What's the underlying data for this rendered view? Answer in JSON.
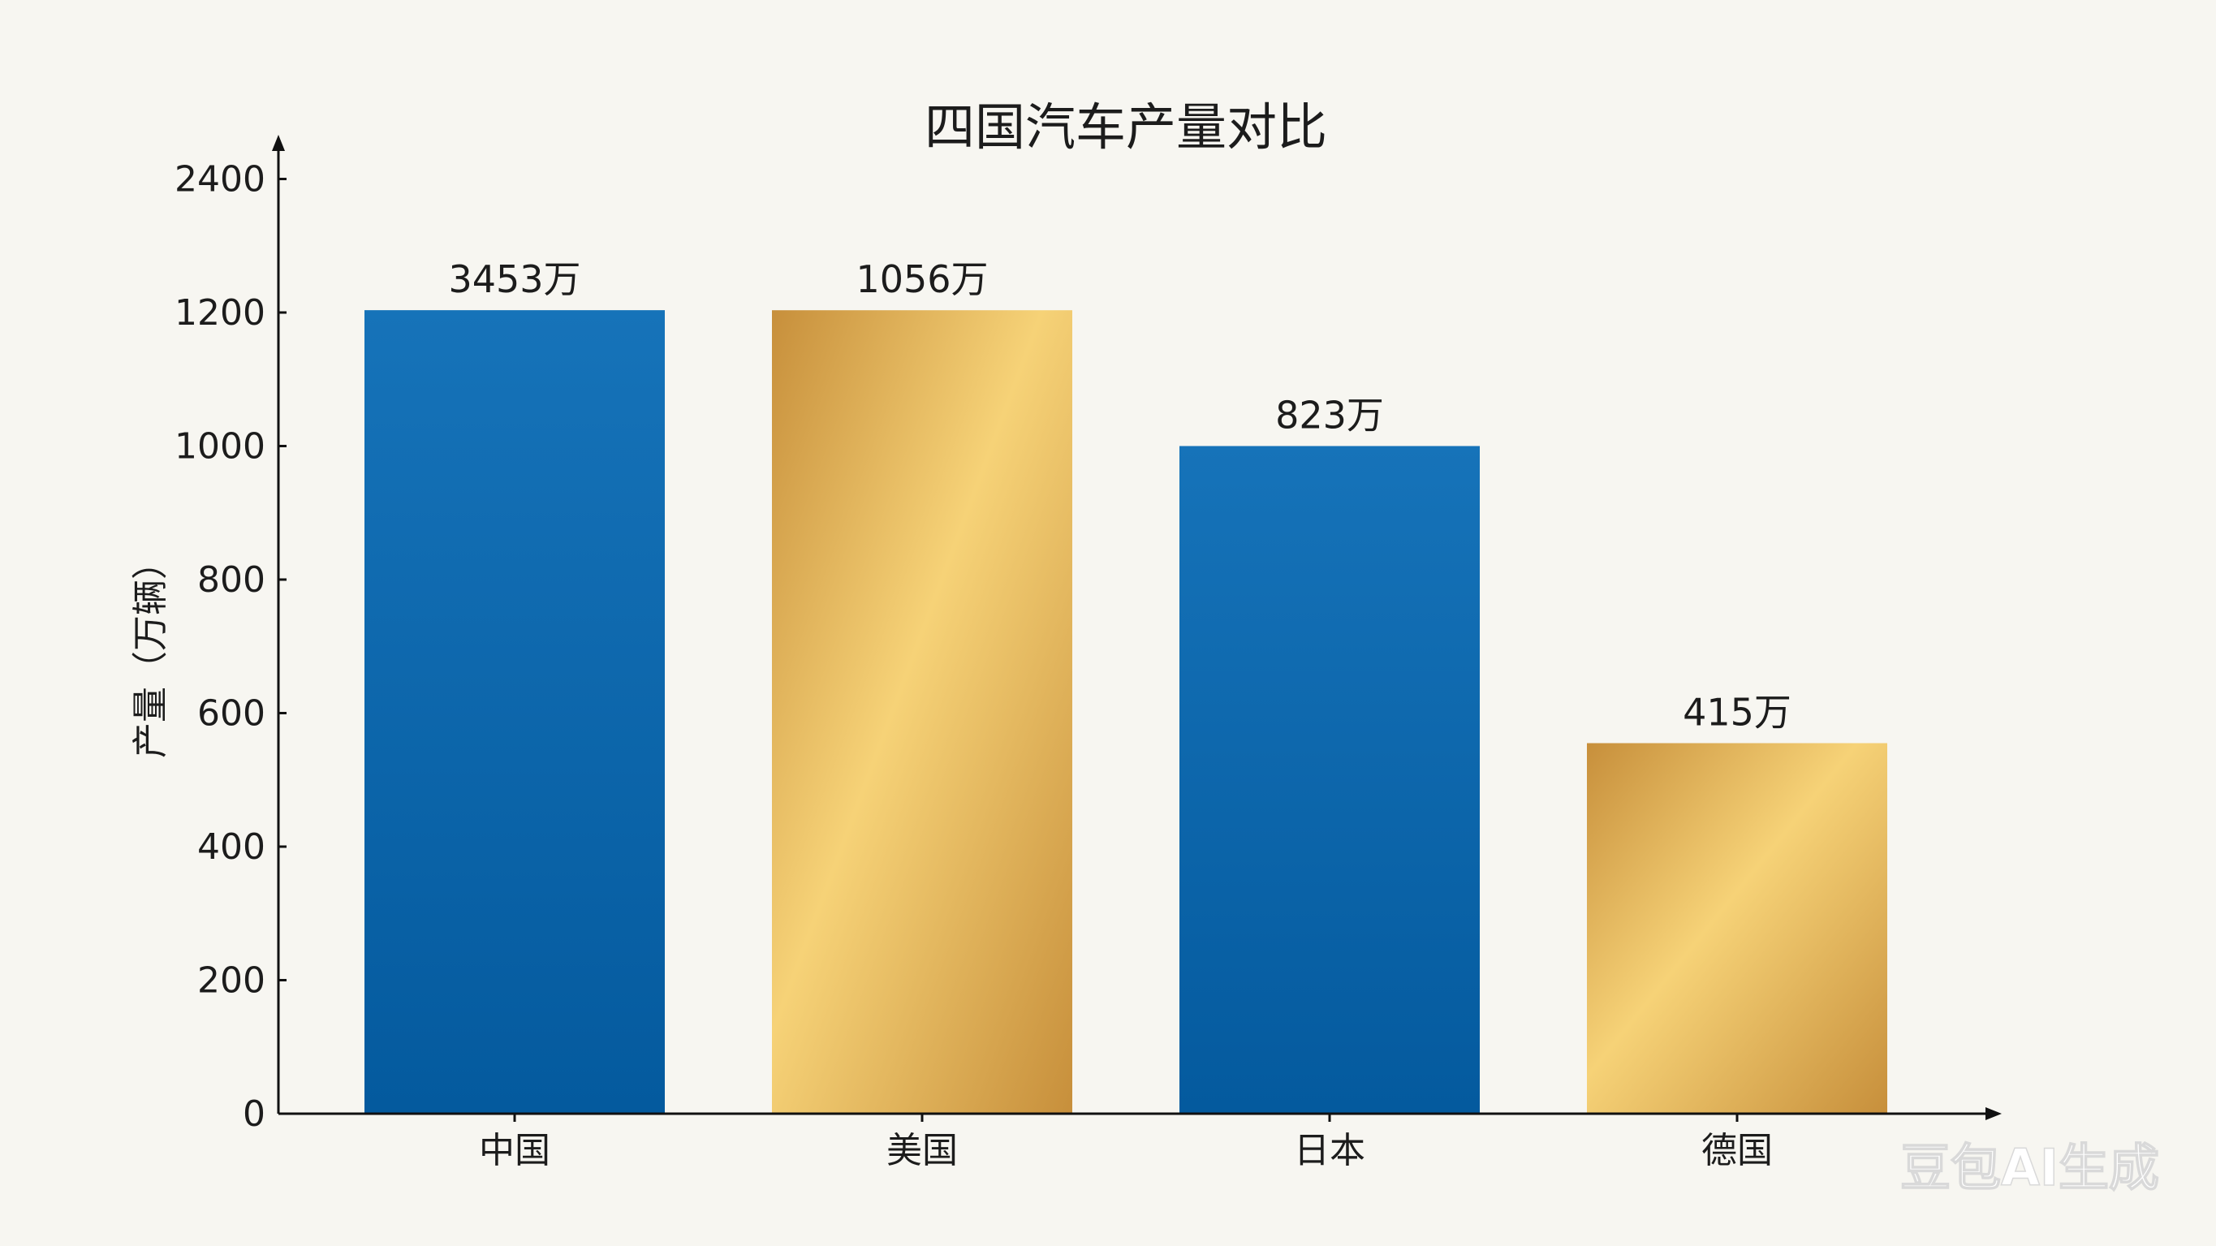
{
  "chart_data": {
    "type": "bar",
    "title": "四国汽车产量对比",
    "ylabel": "产量（万辆）",
    "xlabel": "",
    "y_ticks": [
      "0",
      "200",
      "400",
      "600",
      "800",
      "1000",
      "1200",
      "2400"
    ],
    "categories": [
      "中国",
      "美国",
      "日本",
      "德国"
    ],
    "values": [
      3453,
      1056,
      823,
      415
    ],
    "data_labels": [
      "3453万",
      "1056万",
      "823万",
      "415万"
    ],
    "bar_colors": [
      "blue",
      "gold",
      "blue",
      "gold"
    ],
    "grid": false,
    "legend": "none"
  },
  "palette": {
    "blue_light": "#1673b9",
    "blue_dark": "#045a9e",
    "gold_light": "#f6d277",
    "gold_dark": "#c78f3b",
    "axis": "#111111"
  },
  "watermark": "豆包AI生成"
}
